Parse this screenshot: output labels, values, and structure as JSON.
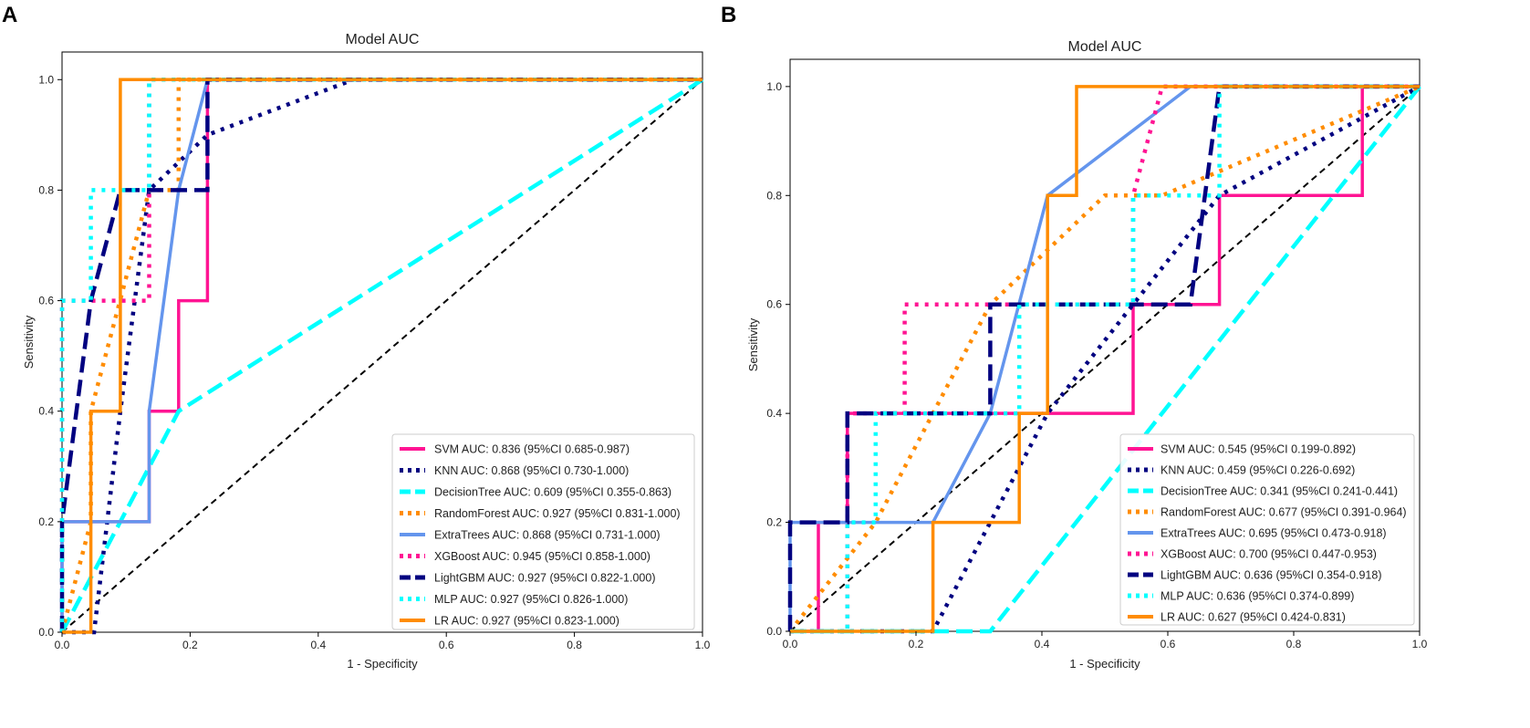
{
  "colors": {
    "SVM": "#ff1493",
    "KNN": "#000080",
    "DecisionTree": "#00ffff",
    "RandomForest": "#ff8c00",
    "ExtraTrees": "#6495ed",
    "XGBoost": "#ff1493",
    "LightGBM": "#000080",
    "MLP": "#00ffff",
    "LR": "#ff8c00",
    "diagonal": "#000000"
  },
  "chart_data": [
    {
      "type": "line",
      "panel_label": "A",
      "title": "Model AUC",
      "xlabel": "1 - Specificity",
      "ylabel": "Sensitivity",
      "xlim": [
        0,
        1
      ],
      "ylim": [
        0,
        1.05
      ],
      "x_ticks": [
        "0.0",
        "0.2",
        "0.4",
        "0.6",
        "0.8",
        "1.0"
      ],
      "y_ticks": [
        "0.0",
        "0.2",
        "0.4",
        "0.6",
        "0.8",
        "1.0"
      ],
      "grid": false,
      "legend_position": "lower-right",
      "diagonal": true,
      "series": [
        {
          "name": "SVM",
          "legend": "SVM AUC: 0.836 (95%CI 0.685-0.987)",
          "style": "solid",
          "points": [
            [
              0,
              0
            ],
            [
              0,
              0.2
            ],
            [
              0.136,
              0.2
            ],
            [
              0.136,
              0.4
            ],
            [
              0.182,
              0.4
            ],
            [
              0.182,
              0.6
            ],
            [
              0.227,
              0.6
            ],
            [
              0.227,
              1.0
            ],
            [
              1,
              1
            ]
          ]
        },
        {
          "name": "KNN",
          "legend": "KNN AUC: 0.868 (95%CI 0.730-1.000)",
          "style": "dotted",
          "points": [
            [
              0,
              0
            ],
            [
              0.05,
              0
            ],
            [
              0.091,
              0.4
            ],
            [
              0.136,
              0.8
            ],
            [
              0.227,
              0.9
            ],
            [
              0.455,
              1.0
            ],
            [
              1,
              1
            ]
          ]
        },
        {
          "name": "DecisionTree",
          "legend": "DecisionTree AUC: 0.609 (95%CI 0.355-0.863)",
          "style": "dashed",
          "points": [
            [
              0,
              0
            ],
            [
              0.182,
              0.4
            ],
            [
              1,
              1
            ]
          ]
        },
        {
          "name": "RandomForest",
          "legend": "RandomForest AUC: 0.927 (95%CI 0.831-1.000)",
          "style": "dotted",
          "points": [
            [
              0,
              0
            ],
            [
              0.045,
              0.2
            ],
            [
              0.045,
              0.4
            ],
            [
              0.136,
              0.8
            ],
            [
              0.182,
              0.8
            ],
            [
              0.182,
              1.0
            ],
            [
              1,
              1
            ]
          ]
        },
        {
          "name": "ExtraTrees",
          "legend": "ExtraTrees AUC: 0.868 (95%CI 0.731-1.000)",
          "style": "solid",
          "points": [
            [
              0,
              0
            ],
            [
              0,
              0.2
            ],
            [
              0.136,
              0.2
            ],
            [
              0.136,
              0.4
            ],
            [
              0.182,
              0.8
            ],
            [
              0.227,
              1.0
            ],
            [
              1,
              1
            ]
          ]
        },
        {
          "name": "XGBoost",
          "legend": "XGBoost AUC: 0.945 (95%CI 0.858-1.000)",
          "style": "dotted",
          "points": [
            [
              0,
              0
            ],
            [
              0,
              0.6
            ],
            [
              0.136,
              0.6
            ],
            [
              0.136,
              0.8
            ],
            [
              0.136,
              1.0
            ],
            [
              1,
              1
            ]
          ]
        },
        {
          "name": "LightGBM",
          "legend": "LightGBM AUC: 0.927 (95%CI 0.822-1.000)",
          "style": "dashed",
          "points": [
            [
              0,
              0
            ],
            [
              0,
              0.2
            ],
            [
              0.045,
              0.6
            ],
            [
              0.091,
              0.8
            ],
            [
              0.227,
              0.8
            ],
            [
              0.227,
              1.0
            ],
            [
              1,
              1
            ]
          ]
        },
        {
          "name": "MLP",
          "legend": "MLP AUC: 0.927 (95%CI 0.826-1.000)",
          "style": "dotted",
          "points": [
            [
              0,
              0
            ],
            [
              0,
              0.6
            ],
            [
              0.045,
              0.6
            ],
            [
              0.045,
              0.8
            ],
            [
              0.136,
              0.8
            ],
            [
              0.136,
              1.0
            ],
            [
              1,
              1
            ]
          ]
        },
        {
          "name": "LR",
          "legend": "LR AUC: 0.927 (95%CI 0.823-1.000)",
          "style": "solid",
          "points": [
            [
              0,
              0
            ],
            [
              0.045,
              0
            ],
            [
              0.045,
              0.4
            ],
            [
              0.091,
              0.4
            ],
            [
              0.091,
              1.0
            ],
            [
              1,
              1
            ]
          ]
        }
      ]
    },
    {
      "type": "line",
      "panel_label": "B",
      "title": "Model AUC",
      "xlabel": "1 - Specificity",
      "ylabel": "Sensitivity",
      "xlim": [
        0,
        1
      ],
      "ylim": [
        0,
        1.05
      ],
      "x_ticks": [
        "0.0",
        "0.2",
        "0.4",
        "0.6",
        "0.8",
        "1.0"
      ],
      "y_ticks": [
        "0.0",
        "0.2",
        "0.4",
        "0.6",
        "0.8",
        "1.0"
      ],
      "grid": false,
      "legend_position": "lower-right",
      "diagonal": true,
      "series": [
        {
          "name": "SVM",
          "legend": "SVM AUC: 0.545 (95%CI 0.199-0.892)",
          "style": "solid",
          "points": [
            [
              0,
              0
            ],
            [
              0.045,
              0
            ],
            [
              0.045,
              0.2
            ],
            [
              0.091,
              0.2
            ],
            [
              0.091,
              0.4
            ],
            [
              0.545,
              0.4
            ],
            [
              0.545,
              0.6
            ],
            [
              0.682,
              0.6
            ],
            [
              0.682,
              0.8
            ],
            [
              0.909,
              0.8
            ],
            [
              0.909,
              1.0
            ],
            [
              1,
              1
            ]
          ]
        },
        {
          "name": "KNN",
          "legend": "KNN AUC: 0.459 (95%CI 0.226-0.692)",
          "style": "dotted",
          "points": [
            [
              0,
              0
            ],
            [
              0.227,
              0
            ],
            [
              0.409,
              0.4
            ],
            [
              0.545,
              0.6
            ],
            [
              0.682,
              0.8
            ],
            [
              1,
              1
            ]
          ]
        },
        {
          "name": "DecisionTree",
          "legend": "DecisionTree AUC: 0.341 (95%CI 0.241-0.441)",
          "style": "dashed",
          "points": [
            [
              0,
              0
            ],
            [
              0.318,
              0
            ],
            [
              1,
              1
            ]
          ]
        },
        {
          "name": "RandomForest",
          "legend": "RandomForest AUC: 0.677 (95%CI 0.391-0.964)",
          "style": "dotted",
          "points": [
            [
              0,
              0
            ],
            [
              0.136,
              0.2
            ],
            [
              0.227,
              0.4
            ],
            [
              0.318,
              0.6
            ],
            [
              0.5,
              0.8
            ],
            [
              0.591,
              0.8
            ],
            [
              1,
              1
            ]
          ]
        },
        {
          "name": "ExtraTrees",
          "legend": "ExtraTrees AUC: 0.695 (95%CI 0.473-0.918)",
          "style": "solid",
          "points": [
            [
              0,
              0
            ],
            [
              0,
              0.2
            ],
            [
              0.227,
              0.2
            ],
            [
              0.318,
              0.4
            ],
            [
              0.409,
              0.8
            ],
            [
              0.636,
              1.0
            ],
            [
              1,
              1
            ]
          ]
        },
        {
          "name": "XGBoost",
          "legend": "XGBoost AUC: 0.700 (95%CI 0.447-0.953)",
          "style": "dotted",
          "points": [
            [
              0,
              0
            ],
            [
              0.091,
              0
            ],
            [
              0.091,
              0.4
            ],
            [
              0.182,
              0.4
            ],
            [
              0.182,
              0.6
            ],
            [
              0.545,
              0.6
            ],
            [
              0.545,
              0.8
            ],
            [
              0.591,
              1.0
            ],
            [
              1,
              1
            ]
          ]
        },
        {
          "name": "LightGBM",
          "legend": "LightGBM AUC: 0.636 (95%CI 0.354-0.918)",
          "style": "dashed",
          "points": [
            [
              0,
              0
            ],
            [
              0,
              0.2
            ],
            [
              0.091,
              0.2
            ],
            [
              0.091,
              0.4
            ],
            [
              0.318,
              0.4
            ],
            [
              0.318,
              0.6
            ],
            [
              0.636,
              0.6
            ],
            [
              0.682,
              1.0
            ],
            [
              1,
              1
            ]
          ]
        },
        {
          "name": "MLP",
          "legend": "MLP AUC: 0.636 (95%CI 0.374-0.899)",
          "style": "dotted",
          "points": [
            [
              0,
              0
            ],
            [
              0.091,
              0
            ],
            [
              0.091,
              0.2
            ],
            [
              0.136,
              0.2
            ],
            [
              0.136,
              0.4
            ],
            [
              0.364,
              0.4
            ],
            [
              0.364,
              0.6
            ],
            [
              0.545,
              0.6
            ],
            [
              0.545,
              0.8
            ],
            [
              0.682,
              0.8
            ],
            [
              0.682,
              1.0
            ],
            [
              1,
              1
            ]
          ]
        },
        {
          "name": "LR",
          "legend": "LR AUC: 0.627 (95%CI 0.424-0.831)",
          "style": "solid",
          "points": [
            [
              0,
              0
            ],
            [
              0.227,
              0
            ],
            [
              0.227,
              0.2
            ],
            [
              0.364,
              0.2
            ],
            [
              0.364,
              0.4
            ],
            [
              0.409,
              0.4
            ],
            [
              0.409,
              0.8
            ],
            [
              0.455,
              0.8
            ],
            [
              0.455,
              1.0
            ],
            [
              1,
              1
            ]
          ]
        }
      ]
    }
  ]
}
